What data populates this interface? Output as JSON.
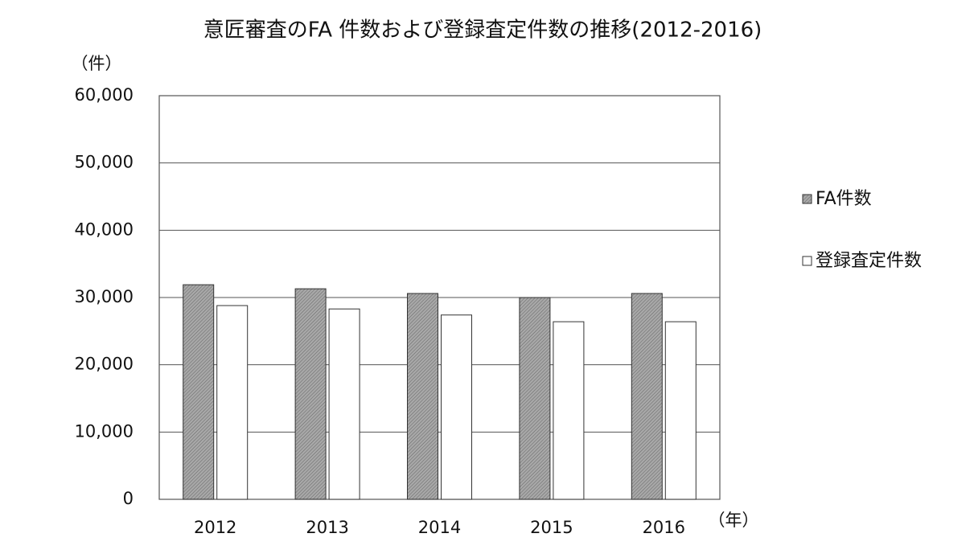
{
  "chart_data": {
    "type": "bar",
    "title": "意匠審査のFA 件数および登録査定件数の推移(2012-2016)",
    "y_label": "（件）",
    "x_label": "（年）",
    "categories": [
      "2012",
      "2013",
      "2014",
      "2015",
      "2016"
    ],
    "series": [
      {
        "name": "FA件数",
        "color": "#9a9a9a",
        "values": [
          31900,
          31300,
          30600,
          30000,
          30600
        ]
      },
      {
        "name": "登録査定件数",
        "color": "#ffffff",
        "values": [
          28800,
          28300,
          27400,
          26400,
          26400
        ]
      }
    ],
    "ylim": [
      0,
      60000
    ],
    "yticks": [
      0,
      {
        "value": 10000,
        "label": "10,000"
      },
      {
        "value": 20000,
        "label": "20,000"
      },
      {
        "value": 30000,
        "label": "30,000"
      },
      {
        "value": 40000,
        "label": "40,000"
      },
      {
        "value": 50000,
        "label": "50,000"
      },
      {
        "value": 60000,
        "label": "60,000"
      }
    ],
    "grid": true,
    "legend": "right"
  }
}
